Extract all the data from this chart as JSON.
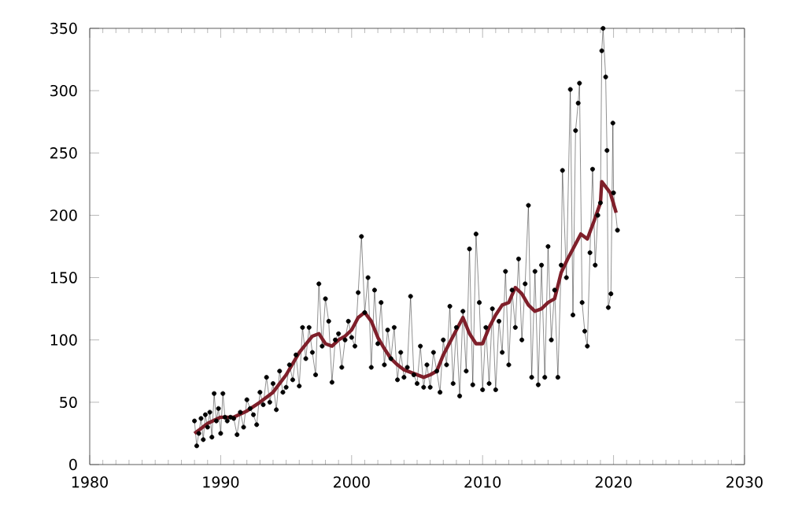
{
  "chart_data": {
    "type": "line",
    "xlim": [
      1980,
      2030
    ],
    "ylim": [
      0,
      350
    ],
    "xticks": [
      1980,
      1990,
      2000,
      2010,
      2020,
      2030
    ],
    "yticks": [
      0,
      50,
      100,
      150,
      200,
      250,
      300,
      350
    ],
    "grid": false,
    "series": [
      {
        "color": "#000000",
        "marker": "circle",
        "x": [
          1988.0,
          1988.17,
          1988.33,
          1988.5,
          1988.67,
          1988.83,
          1989.0,
          1989.17,
          1989.33,
          1989.5,
          1989.67,
          1989.83,
          1990.0,
          1990.17,
          1990.33,
          1990.5,
          1990.75,
          1991.0,
          1991.25,
          1991.5,
          1991.75,
          1992.0,
          1992.25,
          1992.5,
          1992.75,
          1993.0,
          1993.25,
          1993.5,
          1993.75,
          1994.0,
          1994.25,
          1994.5,
          1994.75,
          1995.0,
          1995.25,
          1995.5,
          1995.75,
          1996.0,
          1996.25,
          1996.5,
          1996.75,
          1997.0,
          1997.25,
          1997.5,
          1997.75,
          1998.0,
          1998.25,
          1998.5,
          1998.75,
          1999.0,
          1999.25,
          1999.5,
          1999.75,
          2000.0,
          2000.25,
          2000.5,
          2000.75,
          2001.0,
          2001.25,
          2001.5,
          2001.75,
          2002.0,
          2002.25,
          2002.5,
          2002.75,
          2003.0,
          2003.25,
          2003.5,
          2003.75,
          2004.0,
          2004.25,
          2004.5,
          2004.75,
          2005.0,
          2005.25,
          2005.5,
          2005.75,
          2006.0,
          2006.25,
          2006.5,
          2006.75,
          2007.0,
          2007.25,
          2007.5,
          2007.75,
          2008.0,
          2008.25,
          2008.5,
          2008.75,
          2009.0,
          2009.25,
          2009.5,
          2009.75,
          2010.0,
          2010.25,
          2010.5,
          2010.75,
          2011.0,
          2011.25,
          2011.5,
          2011.75,
          2012.0,
          2012.25,
          2012.5,
          2012.75,
          2013.0,
          2013.25,
          2013.5,
          2013.75,
          2014.0,
          2014.25,
          2014.5,
          2014.75,
          2015.0,
          2015.25,
          2015.5,
          2015.75,
          2016.0,
          2016.1,
          2016.4,
          2016.7,
          2016.9,
          2017.1,
          2017.3,
          2017.4,
          2017.6,
          2017.8,
          2018.0,
          2018.2,
          2018.4,
          2018.6,
          2018.8,
          2019.0,
          2019.1,
          2019.2,
          2019.4,
          2019.5,
          2019.6,
          2019.8,
          2019.95,
          2020.0,
          2020.3
        ],
        "values": [
          35,
          15,
          25,
          37,
          20,
          40,
          30,
          42,
          22,
          57,
          35,
          45,
          25,
          57,
          38,
          35,
          38,
          37,
          24,
          42,
          30,
          52,
          45,
          40,
          32,
          58,
          48,
          70,
          50,
          65,
          44,
          75,
          58,
          62,
          80,
          68,
          88,
          63,
          110,
          85,
          110,
          90,
          72,
          145,
          95,
          133,
          115,
          66,
          100,
          105,
          78,
          100,
          115,
          102,
          95,
          138,
          183,
          122,
          150,
          78,
          140,
          97,
          130,
          80,
          108,
          85,
          110,
          68,
          90,
          70,
          78,
          135,
          72,
          65,
          95,
          62,
          80,
          62,
          90,
          75,
          58,
          100,
          80,
          127,
          65,
          110,
          55,
          123,
          75,
          173,
          64,
          185,
          130,
          60,
          110,
          65,
          125,
          60,
          115,
          90,
          155,
          80,
          140,
          110,
          165,
          100,
          145,
          208,
          70,
          155,
          64,
          160,
          70,
          175,
          100,
          140,
          70,
          160,
          236,
          150,
          301,
          120,
          268,
          290,
          306,
          130,
          107,
          95,
          170,
          237,
          160,
          200,
          210,
          332,
          350,
          311,
          252,
          126,
          137,
          274,
          218,
          188
        ]
      },
      {
        "color": "#7f1f2a",
        "marker": "none",
        "x": [
          1988,
          1989,
          1990,
          1991,
          1992,
          1993,
          1994,
          1995,
          1996,
          1997,
          1997.5,
          1998,
          1998.5,
          1999,
          1999.5,
          2000,
          2000.5,
          2001,
          2001.5,
          2002,
          2002.5,
          2003,
          2003.5,
          2004,
          2005,
          2005.5,
          2006,
          2006.5,
          2007,
          2007.5,
          2008,
          2008.5,
          2009,
          2009.5,
          2010,
          2010.5,
          2011,
          2011.5,
          2012,
          2012.5,
          2013,
          2013.5,
          2014,
          2014.5,
          2015,
          2015.5,
          2016,
          2016.5,
          2017,
          2017.5,
          2018,
          2018.5,
          2019,
          2019.1,
          2019.75,
          2020.2
        ],
        "values": [
          25,
          33,
          38,
          38,
          43,
          50,
          58,
          72,
          90,
          103,
          105,
          97,
          95,
          100,
          103,
          108,
          118,
          122,
          115,
          102,
          93,
          85,
          80,
          76,
          72,
          70,
          72,
          75,
          88,
          98,
          108,
          118,
          105,
          97,
          97,
          110,
          120,
          128,
          130,
          142,
          137,
          128,
          123,
          125,
          130,
          133,
          154,
          165,
          175,
          185,
          181,
          195,
          210,
          227,
          218,
          202
        ]
      }
    ]
  }
}
